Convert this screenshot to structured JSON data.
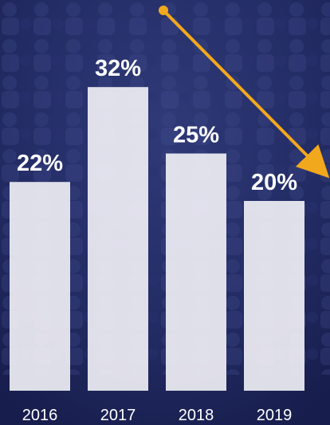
{
  "chart_data": {
    "type": "bar",
    "categories": [
      "2016",
      "2017",
      "2018",
      "2019"
    ],
    "values": [
      22,
      32,
      25,
      20
    ],
    "value_labels": [
      "22%",
      "32%",
      "25%",
      "20%"
    ],
    "color": "#f4f3f8"
  }
}
